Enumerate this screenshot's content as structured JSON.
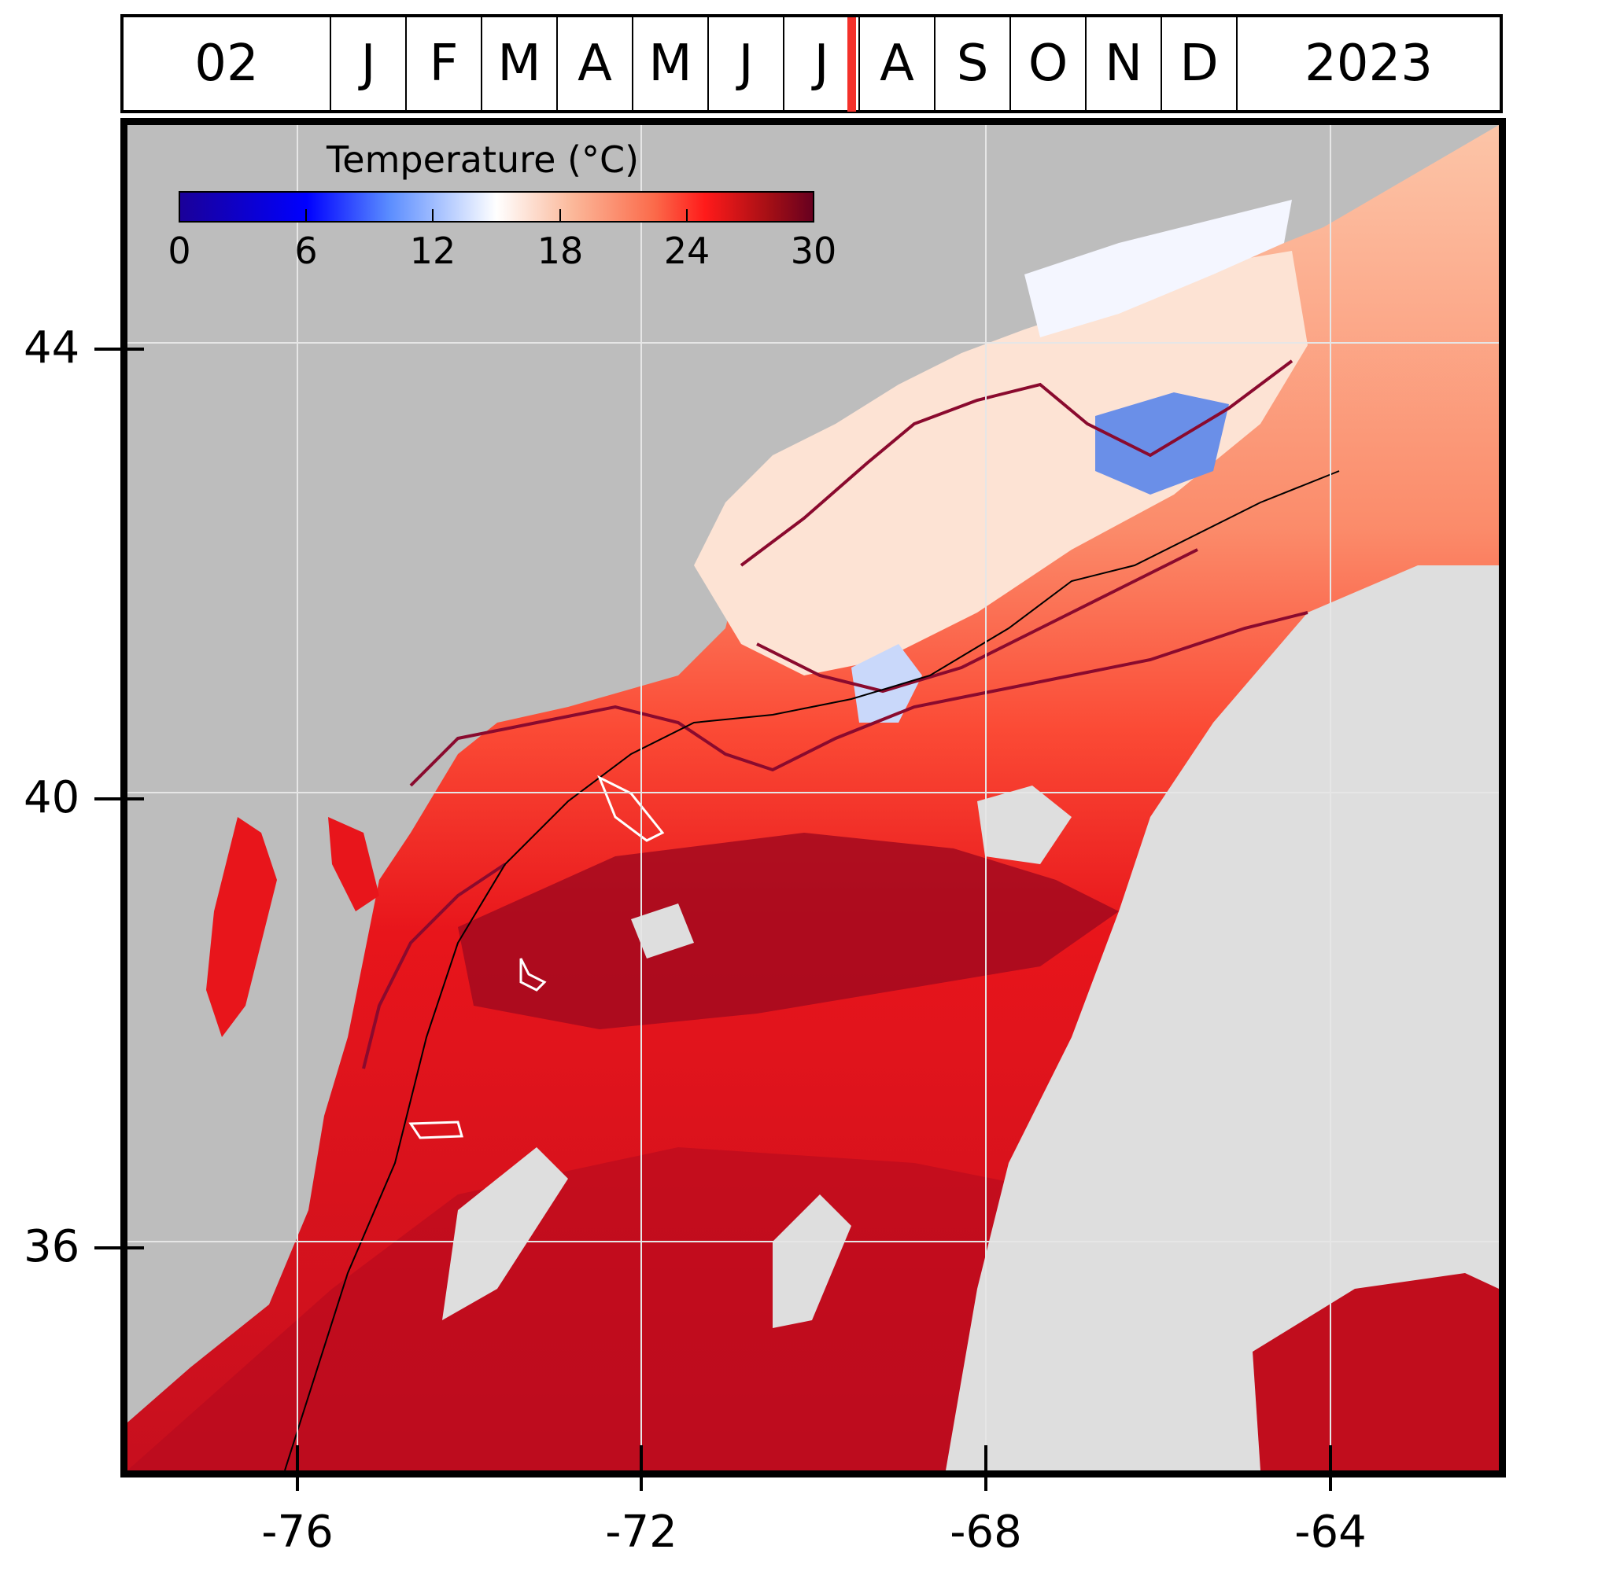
{
  "header": {
    "day": "02",
    "months": [
      "J",
      "F",
      "M",
      "A",
      "M",
      "J",
      "J",
      "A",
      "S",
      "O",
      "N",
      "D"
    ],
    "year": "2023"
  },
  "legend": {
    "title": "Temperature (°C)",
    "ticks": [
      "0",
      "6",
      "12",
      "18",
      "24",
      "30"
    ]
  },
  "axes": {
    "y_labels": [
      "44",
      "40",
      "36"
    ],
    "x_labels": [
      "-76",
      "-72",
      "-68",
      "-64"
    ]
  },
  "colors": {
    "land": "#bdbdbd",
    "no_data": "#dedede",
    "marker": "#f4302a",
    "contour": "#8a0a2e"
  }
}
